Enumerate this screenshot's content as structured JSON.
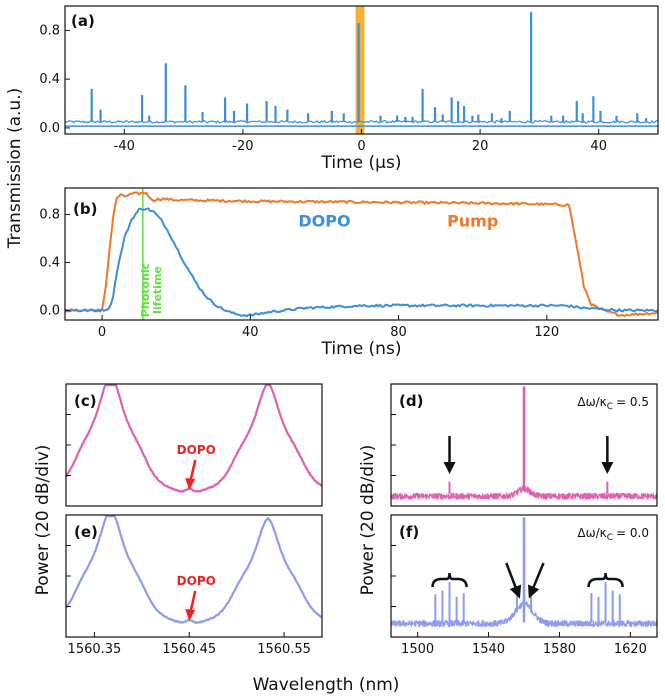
{
  "figure": {
    "ylabel_top": "Transmission (a.u.)",
    "ylabel_bottom_left": "Power (20 dB/div)",
    "ylabel_bottom_right": "Power (20 dB/div)",
    "xlabel_bottom": "Wavelength (nm)"
  },
  "chart_data": [
    {
      "id": "a",
      "type": "line",
      "panel_label": "(a)",
      "xlabel": "Time (μs)",
      "xlim": [
        -50,
        50
      ],
      "ylim": [
        -0.05,
        1.0
      ],
      "xticks": [
        "-40",
        "-20",
        "0",
        "20",
        "40"
      ],
      "xtick_values": [
        -40,
        -20,
        0,
        20,
        40
      ],
      "yticks": [
        "0.0",
        "0.4",
        "0.8"
      ],
      "ytick_values": [
        0.0,
        0.4,
        0.8
      ],
      "highlight_span": [
        -1,
        0.5
      ],
      "highlight_color": "#f5a623",
      "baseline": 0.05,
      "peaks": [
        {
          "x": -45.5,
          "y": 0.32
        },
        {
          "x": -44.0,
          "y": 0.15
        },
        {
          "x": -37.0,
          "y": 0.27
        },
        {
          "x": -35.8,
          "y": 0.1
        },
        {
          "x": -33.0,
          "y": 0.53
        },
        {
          "x": -29.7,
          "y": 0.35
        },
        {
          "x": -26.8,
          "y": 0.13
        },
        {
          "x": -23.0,
          "y": 0.25
        },
        {
          "x": -21.5,
          "y": 0.14
        },
        {
          "x": -19.3,
          "y": 0.2
        },
        {
          "x": -16.0,
          "y": 0.22
        },
        {
          "x": -14.5,
          "y": 0.18
        },
        {
          "x": -12.5,
          "y": 0.15
        },
        {
          "x": -9.0,
          "y": 0.12
        },
        {
          "x": -5.0,
          "y": 0.14
        },
        {
          "x": -3.0,
          "y": 0.12
        },
        {
          "x": -0.5,
          "y": 0.86
        },
        {
          "x": 3.2,
          "y": 0.1
        },
        {
          "x": 6.0,
          "y": 0.1
        },
        {
          "x": 7.4,
          "y": 0.09
        },
        {
          "x": 8.6,
          "y": 0.09
        },
        {
          "x": 10.3,
          "y": 0.32
        },
        {
          "x": 12.4,
          "y": 0.17
        },
        {
          "x": 13.7,
          "y": 0.11
        },
        {
          "x": 15.2,
          "y": 0.25
        },
        {
          "x": 16.3,
          "y": 0.22
        },
        {
          "x": 17.3,
          "y": 0.18
        },
        {
          "x": 18.7,
          "y": 0.1
        },
        {
          "x": 19.7,
          "y": 0.11
        },
        {
          "x": 22.0,
          "y": 0.12
        },
        {
          "x": 23.6,
          "y": 0.08
        },
        {
          "x": 25.0,
          "y": 0.14
        },
        {
          "x": 28.6,
          "y": 0.95
        },
        {
          "x": 32.0,
          "y": 0.1
        },
        {
          "x": 34.0,
          "y": 0.1
        },
        {
          "x": 36.3,
          "y": 0.22
        },
        {
          "x": 37.3,
          "y": 0.12
        },
        {
          "x": 39.1,
          "y": 0.26
        },
        {
          "x": 40.3,
          "y": 0.14
        },
        {
          "x": 43.0,
          "y": 0.1
        },
        {
          "x": 46.5,
          "y": 0.12
        },
        {
          "x": 48.0,
          "y": 0.08
        }
      ],
      "series_color": "#3c8ddc"
    },
    {
      "id": "b",
      "type": "line",
      "panel_label": "(b)",
      "xlabel": "Time (ns)",
      "xlim": [
        -10,
        150
      ],
      "ylim": [
        -0.08,
        1.02
      ],
      "xticks": [
        "0",
        "40",
        "80",
        "120"
      ],
      "xtick_values": [
        0,
        40,
        80,
        120
      ],
      "yticks": [
        "0.0",
        "0.4",
        "0.8"
      ],
      "ytick_values": [
        0.0,
        0.4,
        0.8
      ],
      "vline": {
        "x": 11,
        "color": "#66dd44",
        "label": "Photonic lifetime",
        "label_lines": [
          "Photonic",
          "lifetime"
        ]
      },
      "series": [
        {
          "name": "Pump",
          "color": "#f07828",
          "x": [
            -10,
            0,
            1,
            2,
            3,
            4,
            5,
            6,
            8,
            12,
            13,
            14,
            16,
            20,
            40,
            80,
            110,
            126,
            128,
            130,
            132,
            135,
            140,
            145,
            150
          ],
          "y": [
            0.0,
            0.0,
            0.2,
            0.5,
            0.78,
            0.94,
            0.96,
            0.95,
            0.97,
            0.98,
            0.93,
            0.92,
            0.93,
            0.92,
            0.91,
            0.9,
            0.89,
            0.88,
            0.55,
            0.2,
            0.05,
            0.0,
            -0.04,
            -0.03,
            -0.02
          ]
        },
        {
          "name": "DOPO",
          "color": "#3c8ddc",
          "x": [
            -10,
            0,
            2,
            3,
            4,
            6,
            8,
            10,
            12,
            14,
            16,
            18,
            20,
            22,
            24,
            26,
            28,
            30,
            32,
            34,
            36,
            38,
            40,
            42,
            46,
            55,
            70,
            90,
            110,
            125,
            130,
            140,
            150
          ],
          "y": [
            0.0,
            0.0,
            0.02,
            0.12,
            0.32,
            0.6,
            0.76,
            0.84,
            0.85,
            0.82,
            0.75,
            0.65,
            0.53,
            0.41,
            0.3,
            0.2,
            0.12,
            0.06,
            0.02,
            -0.01,
            -0.03,
            -0.04,
            -0.04,
            -0.03,
            -0.01,
            0.02,
            0.04,
            0.04,
            0.04,
            0.04,
            0.02,
            0.0,
            0.0
          ]
        }
      ],
      "labels": {
        "pump": "Pump",
        "dopo": "DOPO"
      }
    },
    {
      "id": "c",
      "type": "line",
      "panel_label": "(c)",
      "xlim": [
        1560.32,
        1560.59
      ],
      "ylim": [
        0,
        1
      ],
      "color": "#e060b0",
      "annotation": "DOPO",
      "annotation_color": "#ee2222",
      "arrow_x": 1560.45,
      "peaks": [
        {
          "center": 1560.367,
          "height": 0.93
        },
        {
          "center": 1560.533,
          "height": 0.86
        }
      ]
    },
    {
      "id": "d",
      "type": "line",
      "panel_label": "(d)",
      "xlim": [
        1485,
        1635
      ],
      "ylim": [
        0,
        1
      ],
      "color": "#e060b0",
      "note": "Δω/κ",
      "note_sub": "C",
      "note_value": "= 0.5",
      "center": 1560,
      "sidebands": [
        1518,
        1607
      ]
    },
    {
      "id": "e",
      "type": "line",
      "panel_label": "(e)",
      "xlim": [
        1560.32,
        1560.59
      ],
      "ylim": [
        0,
        1
      ],
      "xticks": [
        "1560.35",
        "1560.45",
        "1560.55"
      ],
      "xtick_values": [
        1560.35,
        1560.45,
        1560.55
      ],
      "color": "#8e9cf0",
      "annotation": "DOPO",
      "annotation_color": "#ee2222",
      "arrow_x": 1560.45,
      "peaks": [
        {
          "center": 1560.367,
          "height": 0.9
        },
        {
          "center": 1560.533,
          "height": 0.83
        }
      ]
    },
    {
      "id": "f",
      "type": "line",
      "panel_label": "(f)",
      "xlim": [
        1485,
        1635
      ],
      "ylim": [
        0,
        1
      ],
      "xticks": [
        "1500",
        "1540",
        "1580",
        "1620"
      ],
      "xtick_values": [
        1500,
        1540,
        1580,
        1620
      ],
      "color": "#8e9cf0",
      "note": "Δω/κ",
      "note_sub": "C",
      "note_value": "= 0.0",
      "center": 1560,
      "comb_left": [
        1510,
        1514,
        1518,
        1522,
        1526
      ],
      "comb_right": [
        1598,
        1602,
        1606,
        1610,
        1614
      ]
    }
  ]
}
